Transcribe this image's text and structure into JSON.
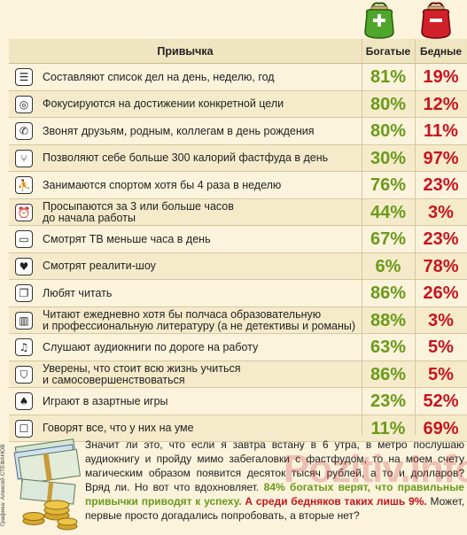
{
  "header": {
    "habit": "Привычка",
    "rich": "Богатые",
    "poor": "Бедные"
  },
  "purses": {
    "rich_sign": "+",
    "poor_sign": "–"
  },
  "rows": [
    {
      "icon": "list-icon",
      "glyph": "☰",
      "text": "Составляют список дел на день, неделю, год",
      "rich": "81%",
      "poor": "19%"
    },
    {
      "icon": "target-icon",
      "glyph": "◎",
      "text": "Фокусируются на достижении конкретной цели",
      "rich": "80%",
      "poor": "12%"
    },
    {
      "icon": "phone-icon",
      "glyph": "✆",
      "text": "Звонят друзьям, родным, коллегам в день рождения",
      "rich": "80%",
      "poor": "11%"
    },
    {
      "icon": "fork-icon",
      "glyph": "⑂",
      "text": "Позволяют себе больше 300 калорий фастфуда в день",
      "rich": "30%",
      "poor": "97%"
    },
    {
      "icon": "runner-icon",
      "glyph": "⛹",
      "text": "Занимаются спортом хотя бы 4 раза в неделю",
      "rich": "76%",
      "poor": "23%"
    },
    {
      "icon": "alarm-clock-icon",
      "glyph": "⏰",
      "text": "Просыпаются за 3 или больше часов\nдо начала работы",
      "rich": "44%",
      "poor": "3%"
    },
    {
      "icon": "tv-icon",
      "glyph": "▭",
      "text": "Смотрят ТВ меньше часа в день",
      "rich": "67%",
      "poor": "23%"
    },
    {
      "icon": "tv-heart-icon",
      "glyph": "♥",
      "text": "Смотрят реалити-шоу",
      "rich": "6%",
      "poor": "78%"
    },
    {
      "icon": "book-icon",
      "glyph": "❐",
      "text": "Любят читать",
      "rich": "86%",
      "poor": "26%"
    },
    {
      "icon": "books-icon",
      "glyph": "▥",
      "text": "Читают ежедневно хотя бы полчаса образовательную\nи профессиональную литературу (а не детективы и романы)",
      "rich": "88%",
      "poor": "3%"
    },
    {
      "icon": "headphones-icon",
      "glyph": "♫",
      "text": "Слушают аудиокниги по дороге на работу",
      "rich": "63%",
      "poor": "5%"
    },
    {
      "icon": "graduation-cap-icon",
      "glyph": "⛉",
      "text": "Уверены, что стоит всю жизнь учиться\nи самосовершенствоваться",
      "rich": "86%",
      "poor": "5%"
    },
    {
      "icon": "spade-icon",
      "glyph": "♠",
      "text": "Играют в азартные игры",
      "rich": "23%",
      "poor": "52%"
    },
    {
      "icon": "speech-bubble-icon",
      "glyph": "☐",
      "text": "Говорят все, что у них на уме",
      "rich": "11%",
      "poor": "69%"
    }
  ],
  "credit": "Графика: Алексей СТЕФАНОВ",
  "footer": {
    "p1": "Значит ли это, что если я завтра встану в 6 утра, в метро послушаю аудиокнигу и пройду мимо забегаловки с фастфудом, то на моем счету магическим образом появится десяток тысяч рублей, а то и долларов? Вряд ли. Но вот что вдохновляет. ",
    "g1": "84% богатых верят, что правильные привычки приводят к успеху.",
    "r1": " А среди бедняков таких лишь 9%.",
    "p2": " Может, первые просто догадались попробовать, а вторые нет?"
  },
  "watermark": "Pozitiv.Info",
  "colors": {
    "rich": "#6a9a1a",
    "poor": "#c8141e",
    "background": "#fbf3dc",
    "stripe": "#f5ebcb"
  }
}
